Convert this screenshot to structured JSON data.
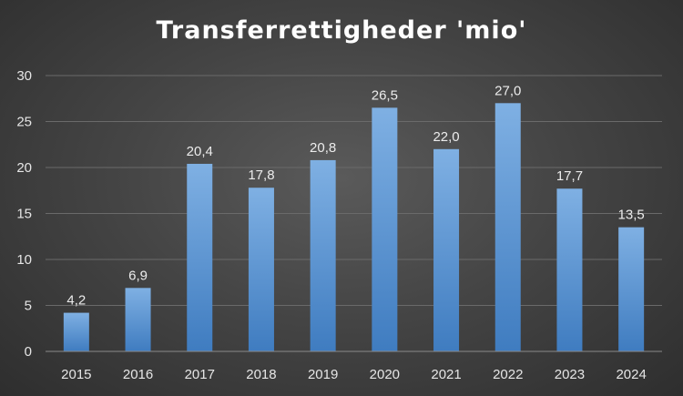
{
  "chart_data": {
    "type": "bar",
    "title": "Transferrettigheder 'mio'",
    "categories": [
      "2015",
      "2016",
      "2017",
      "2018",
      "2019",
      "2020",
      "2021",
      "2022",
      "2023",
      "2024"
    ],
    "values": [
      4.2,
      6.9,
      20.4,
      17.8,
      20.8,
      26.5,
      22.0,
      27.0,
      17.7,
      13.5
    ],
    "data_labels": [
      "4,2",
      "6,9",
      "20,4",
      "17,8",
      "20,8",
      "26,5",
      "22,0",
      "27,0",
      "17,7",
      "13,5"
    ],
    "ylim": [
      0,
      30
    ],
    "yticks": [
      0,
      5,
      10,
      15,
      20,
      25,
      30
    ],
    "xlabel": "",
    "ylabel": "",
    "grid": true,
    "legend": "none",
    "colors": {
      "bar_top": "#7fb0e3",
      "bar_bottom": "#3f7cc0",
      "grid": "#6a6a6a",
      "axis": "#8a8a8a",
      "text": "#e6e6e6"
    }
  }
}
